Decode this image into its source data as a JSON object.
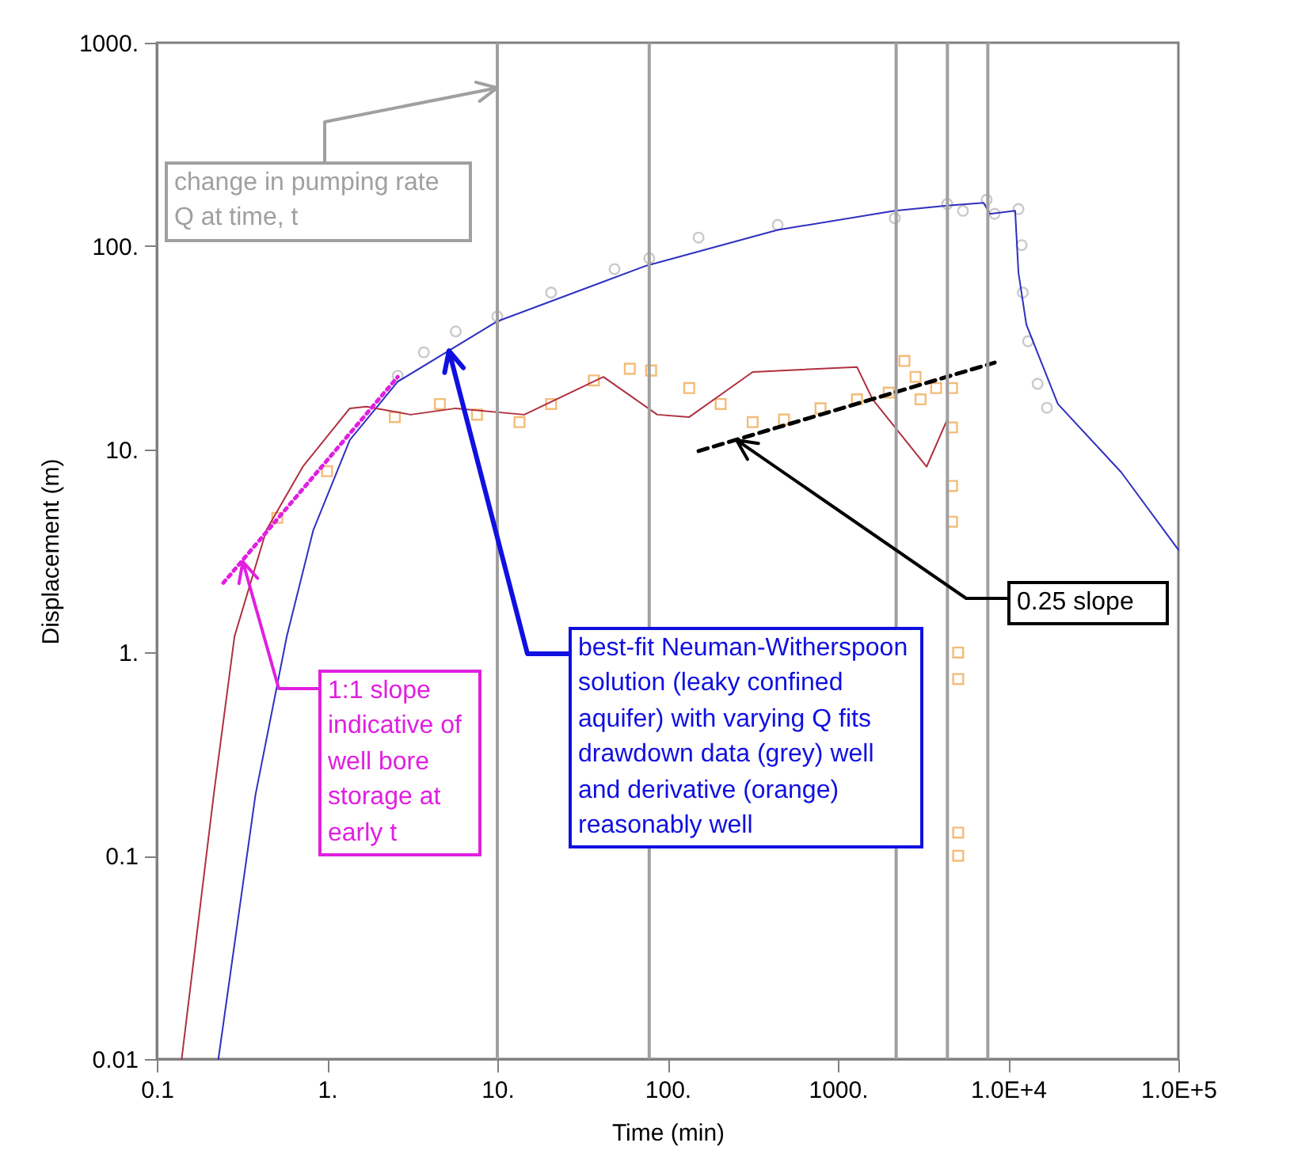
{
  "chart_data": {
    "type": "scatter",
    "xlabel": "Time (min)",
    "ylabel": "Displacement (m)",
    "log": "xy",
    "grid": false,
    "xlim": [
      0.1,
      100000
    ],
    "ylim": [
      0.01,
      1000
    ],
    "xticks": [
      0.1,
      {
        "value": 1,
        "label": "1."
      },
      {
        "value": 10,
        "label": "10."
      },
      {
        "value": 100,
        "label": "100."
      },
      {
        "value": 1000,
        "label": "1000."
      },
      {
        "value": 10000,
        "label": "1.0E+4"
      },
      {
        "value": 100000,
        "label": "1.0E+5"
      }
    ],
    "yticks": [
      0.01,
      0.1,
      {
        "value": 1,
        "label": "1."
      },
      {
        "value": 10,
        "label": "10."
      },
      {
        "value": 100,
        "label": "100."
      },
      {
        "value": 1000,
        "label": "1000."
      }
    ],
    "series": [
      {
        "marker": "circle",
        "color": "#b4b4b4",
        "x": [
          2.6,
          3.7,
          5.7,
          10,
          20.7,
          48.8,
          78,
          152,
          443,
          2160,
          4390,
          5430,
          7480,
          8330,
          11500,
          12000,
          12200,
          13100,
          14900,
          16900
        ],
        "values": [
          23,
          30,
          38,
          45,
          59,
          77,
          87,
          110,
          127,
          137,
          161,
          149,
          169,
          144,
          152,
          101,
          59,
          34,
          21,
          16
        ]
      },
      {
        "marker": "square",
        "color": "#f0a040",
        "x": [
          0.51,
          1,
          2.5,
          4.6,
          7.6,
          13.5,
          20.7,
          36.9,
          60,
          80,
          134,
          205,
          316,
          483,
          791,
          1295,
          1990,
          2460,
          2860,
          3060,
          3780,
          4680,
          4680,
          4680,
          4680,
          5090,
          5090,
          5090,
          5090
        ],
        "values": [
          4.6,
          7.8,
          14.4,
          16.7,
          14.8,
          13.6,
          16.7,
          21.8,
          24.9,
          24.4,
          20,
          16.7,
          13.6,
          14,
          15.9,
          17.6,
          19,
          27.2,
          22.7,
          17.6,
          20,
          20,
          12.8,
          6.6,
          4.4,
          1.0,
          0.74,
          0.13,
          0.1
        ]
      },
      {
        "type": "line",
        "line_style": "solid",
        "color": "#3030c0",
        "x": [
          0.23,
          0.38,
          0.58,
          0.83,
          1.36,
          2.6,
          10,
          75,
          443,
          2160,
          4390,
          7180,
          7800,
          11000,
          11500,
          12800,
          19600,
          46200,
          100000
        ],
        "values": [
          0.01,
          0.2,
          1.2,
          4,
          11.1,
          21.5,
          42.6,
          80,
          120,
          149,
          158,
          163,
          144,
          149,
          74,
          41,
          16.7,
          7.7,
          3.2
        ]
      },
      {
        "type": "line",
        "line_style": "solid",
        "color": "#b03040",
        "x": [
          0.14,
          0.216,
          0.286,
          0.44,
          0.72,
          1.36,
          1.7,
          3.1,
          5.7,
          14.4,
          42,
          87,
          134,
          316,
          1295,
          1600,
          3320,
          4390
        ],
        "values": [
          0.01,
          0.2,
          1.2,
          4,
          8.2,
          15.9,
          16.2,
          14.8,
          15.9,
          14.8,
          22.7,
          14.8,
          14.4,
          24,
          25.4,
          17.6,
          8.2,
          14
        ]
      },
      {
        "type": "line",
        "line_style": "dotted",
        "color": "#e020e0",
        "x": [
          0.246,
          2.6
        ],
        "values": [
          2.2,
          22.7
        ]
      },
      {
        "type": "line",
        "line_style": "dashed",
        "color": "#000000",
        "x": [
          152,
          8340
        ],
        "values": [
          9.8,
          26.7
        ]
      }
    ],
    "ref_lines": [
      {
        "axis": "x",
        "value": 10,
        "color": "#a0a0a0"
      },
      {
        "axis": "x",
        "value": 78,
        "color": "#a0a0a0"
      },
      {
        "axis": "x",
        "value": 2200,
        "color": "#a0a0a0"
      },
      {
        "axis": "x",
        "value": 4400,
        "color": "#a0a0a0"
      },
      {
        "axis": "x",
        "value": 7600,
        "color": "#a0a0a0"
      }
    ],
    "annotations": [
      {
        "text": "change in pumping rate Q at time, t",
        "x": 10,
        "y": 600
      },
      {
        "text": "1:1 slope indicative of well bore storage at early t",
        "x": 0.32,
        "y": 2.8
      },
      {
        "text": "best-fit Neuman-Witherspoon solution (leaky confined aquifer) with varying Q fits drawdown data (grey) well and derivative (orange) reasonably well",
        "x": 5.2,
        "y": 30.5
      },
      {
        "text": "0.25 slope",
        "x": 254,
        "y": 11.1
      }
    ]
  }
}
